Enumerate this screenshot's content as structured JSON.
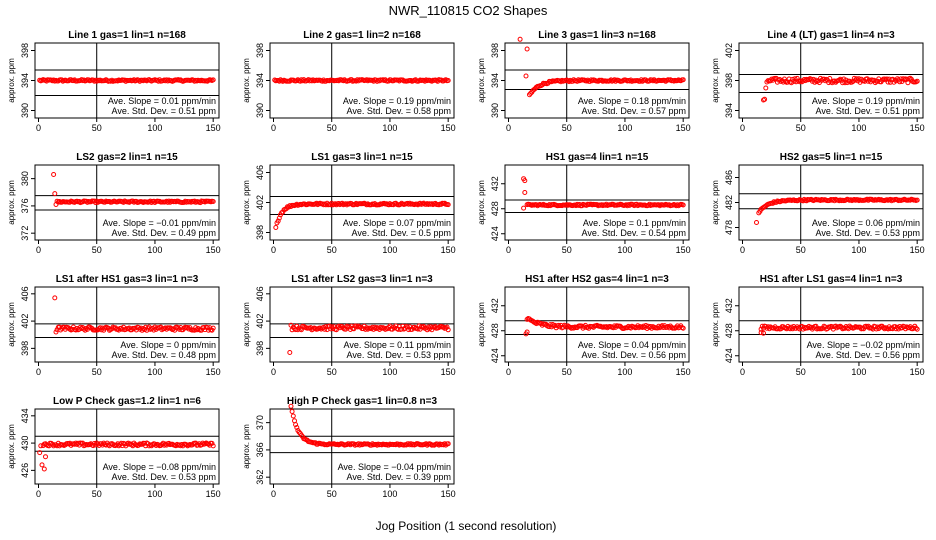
{
  "figure": {
    "title": "NWR_110815  CO2 Shapes",
    "xlabel": "Jog Position (1 second resolution)"
  },
  "colors": {
    "points": "#ff0000",
    "axes": "#000000"
  },
  "chart_data": [
    {
      "type": "scatter",
      "title": "Line 1 gas=1 lin=1 n=168",
      "ylabel": "approx. ppm",
      "xlim": [
        -3,
        155
      ],
      "ylim": [
        389,
        399
      ],
      "yticks": [
        390,
        394,
        398
      ],
      "xticks": [
        0,
        50,
        100,
        150
      ],
      "hlines": [
        395.4,
        392.0
      ],
      "vline": 50,
      "slope": "Ave. Slope = 0.01  ppm/min",
      "stddev": "Ave. Std. Dev. = 0.51  ppm",
      "series": {
        "kind": "flat",
        "x_start": 1,
        "x_end": 150,
        "y": 394.0,
        "noise": 0.12
      }
    },
    {
      "type": "scatter",
      "title": "Line 2 gas=1 lin=2 n=168",
      "ylabel": "approx. ppm",
      "xlim": [
        -3,
        155
      ],
      "ylim": [
        389,
        399
      ],
      "yticks": [
        390,
        394,
        398
      ],
      "xticks": [
        0,
        50,
        100,
        150
      ],
      "hlines": [],
      "vline": 50,
      "slope": "Ave. Slope = 0.19  ppm/min",
      "stddev": "Ave. Std. Dev. = 0.58  ppm",
      "series": {
        "kind": "flat",
        "x_start": 1,
        "x_end": 150,
        "y": 394.0,
        "noise": 0.12
      }
    },
    {
      "type": "scatter",
      "title": "Line 3 gas=1 lin=3 n=168",
      "ylabel": "approx. ppm",
      "xlim": [
        -3,
        155
      ],
      "ylim": [
        389,
        399
      ],
      "yticks": [
        390,
        394,
        398
      ],
      "xticks": [
        0,
        50,
        100,
        150
      ],
      "hlines": [
        395.4,
        392.8
      ],
      "vline": 50,
      "slope": "Ave. Slope = 0.18  ppm/min",
      "stddev": "Ave. Std. Dev. = 0.57  ppm",
      "series": {
        "kind": "rise",
        "x_start": 18,
        "x_end": 150,
        "y": 394.0,
        "y0": 392.0,
        "tau": 8,
        "noise": 0.12,
        "extras": [
          [
            10,
            399.5
          ],
          [
            16,
            398.2
          ],
          [
            15,
            394.6
          ]
        ]
      }
    },
    {
      "type": "scatter",
      "title": "Line 4 (LT) gas=1 lin=4 n=3",
      "ylabel": "approx. ppm",
      "xlim": [
        -3,
        155
      ],
      "ylim": [
        393,
        403
      ],
      "yticks": [
        394,
        398,
        402
      ],
      "xticks": [
        0,
        50,
        100,
        150
      ],
      "hlines": [
        398.8,
        396.4
      ],
      "vline": 50,
      "slope": "Ave. Slope = 0.19  ppm/min",
      "stddev": "Ave. Std. Dev. = 0.51  ppm",
      "series": {
        "kind": "flat",
        "x_start": 22,
        "x_end": 150,
        "y": 398.0,
        "noise": 0.3,
        "extras": [
          [
            18,
            395.4
          ],
          [
            19,
            395.5
          ],
          [
            20,
            397.0
          ],
          [
            21,
            397.8
          ]
        ]
      }
    },
    {
      "type": "scatter",
      "title": "LS2 gas=2 lin=1 n=15",
      "ylabel": "approx. ppm",
      "xlim": [
        -3,
        155
      ],
      "ylim": [
        371,
        382
      ],
      "yticks": [
        372,
        376,
        380
      ],
      "xticks": [
        0,
        50,
        100,
        150
      ],
      "hlines": [
        377.5,
        375.4
      ],
      "vline": 50,
      "slope": "Ave. Slope = −0.01  ppm/min",
      "stddev": "Ave. Std. Dev. = 0.49  ppm",
      "series": {
        "kind": "flat",
        "x_start": 16,
        "x_end": 150,
        "y": 376.6,
        "noise": 0.12,
        "extras": [
          [
            13,
            380.6
          ],
          [
            14,
            377.8
          ],
          [
            15,
            376.2
          ]
        ]
      }
    },
    {
      "type": "scatter",
      "title": "LS1 gas=3 lin=1 n=15",
      "ylabel": "approx. ppm",
      "xlim": [
        -3,
        155
      ],
      "ylim": [
        397,
        407
      ],
      "yticks": [
        398,
        402,
        406
      ],
      "xticks": [
        0,
        50,
        100,
        150
      ],
      "hlines": [
        402.8,
        400.4
      ],
      "vline": 50,
      "slope": "Ave. Slope = 0.07  ppm/min",
      "stddev": "Ave. Std. Dev. = 0.5  ppm",
      "series": {
        "kind": "rise",
        "x_start": 2,
        "x_end": 150,
        "y": 401.8,
        "y0": 398.6,
        "tau": 5,
        "noise": 0.12
      }
    },
    {
      "type": "scatter",
      "title": "HS1 gas=4 lin=1 n=15",
      "ylabel": "approx. ppm",
      "xlim": [
        -3,
        155
      ],
      "ylim": [
        423,
        435
      ],
      "yticks": [
        424,
        428,
        432
      ],
      "xticks": [
        0,
        50,
        100,
        150
      ],
      "hlines": [
        429.4,
        427.4
      ],
      "vline": 50,
      "slope": "Ave. Slope = 0.1  ppm/min",
      "stddev": "Ave. Std. Dev. = 0.54  ppm",
      "series": {
        "kind": "flat",
        "x_start": 16,
        "x_end": 150,
        "y": 428.6,
        "noise": 0.12,
        "extras": [
          [
            13,
            432.8
          ],
          [
            14,
            432.5
          ],
          [
            13,
            428.1
          ],
          [
            14,
            430.6
          ]
        ]
      }
    },
    {
      "type": "scatter",
      "title": "HS2 gas=5 lin=1 n=15",
      "ylabel": "approx. ppm",
      "xlim": [
        -3,
        155
      ],
      "ylim": [
        476,
        488
      ],
      "yticks": [
        478,
        482,
        486
      ],
      "xticks": [
        0,
        50,
        100,
        150
      ],
      "hlines": [
        483.4,
        481.0
      ],
      "vline": 50,
      "slope": "Ave. Slope = 0.06  ppm/min",
      "stddev": "Ave. Std. Dev. = 0.53  ppm",
      "series": {
        "kind": "rise",
        "x_start": 14,
        "x_end": 150,
        "y": 482.4,
        "y0": 480.4,
        "tau": 8,
        "noise": 0.12,
        "extras": [
          [
            12,
            478.8
          ]
        ]
      }
    },
    {
      "type": "scatter",
      "title": "LS1 after HS1 gas=3 lin=1 n=3",
      "ylabel": "approx. ppm",
      "xlim": [
        -3,
        155
      ],
      "ylim": [
        396,
        407
      ],
      "yticks": [
        398,
        402,
        406
      ],
      "xticks": [
        0,
        50,
        100,
        150
      ],
      "hlines": [
        401.6,
        399.6
      ],
      "vline": 50,
      "slope": "Ave. Slope = 0  ppm/min",
      "stddev": "Ave. Std. Dev. = 0.48  ppm",
      "series": {
        "kind": "flat",
        "x_start": 16,
        "x_end": 150,
        "y": 400.9,
        "noise": 0.25,
        "extras": [
          [
            14,
            405.4
          ],
          [
            15,
            400.4
          ]
        ]
      }
    },
    {
      "type": "scatter",
      "title": "LS1 after LS2 gas=3 lin=1 n=3",
      "ylabel": "approx. ppm",
      "xlim": [
        -3,
        155
      ],
      "ylim": [
        396,
        407
      ],
      "yticks": [
        398,
        402,
        406
      ],
      "xticks": [
        0,
        50,
        100,
        150
      ],
      "hlines": [
        401.6,
        399.6
      ],
      "vline": 50,
      "slope": "Ave. Slope = 0.11  ppm/min",
      "stddev": "Ave. Std. Dev. = 0.53  ppm",
      "series": {
        "kind": "flat",
        "x_start": 16,
        "x_end": 150,
        "y": 401.0,
        "noise": 0.28,
        "extras": [
          [
            14,
            397.4
          ],
          [
            15,
            401.4
          ]
        ]
      }
    },
    {
      "type": "scatter",
      "title": "HS1 after HS2 gas=4 lin=1 n=3",
      "ylabel": "approx. ppm",
      "xlim": [
        -3,
        155
      ],
      "ylim": [
        423,
        435
      ],
      "yticks": [
        424,
        428,
        432
      ],
      "xticks": [
        0,
        50,
        100,
        150
      ],
      "hlines": [
        429.6,
        427.4
      ],
      "vline": 50,
      "slope": "Ave. Slope = 0.04  ppm/min",
      "stddev": "Ave. Std. Dev. = 0.56  ppm",
      "series": {
        "kind": "decay",
        "x_start": 16,
        "x_end": 150,
        "y": 428.6,
        "y0": 430.0,
        "tau": 10,
        "noise": 0.25,
        "extras": [
          [
            15,
            427.5
          ],
          [
            16,
            427.8
          ]
        ]
      }
    },
    {
      "type": "scatter",
      "title": "HS1 after LS1 gas=4 lin=1 n=3",
      "ylabel": "approx. ppm",
      "xlim": [
        -3,
        155
      ],
      "ylim": [
        423,
        435
      ],
      "yticks": [
        424,
        428,
        432
      ],
      "xticks": [
        0,
        50,
        100,
        150
      ],
      "hlines": [
        429.6,
        427.4
      ],
      "vline": 50,
      "slope": "Ave. Slope = −0.02  ppm/min",
      "stddev": "Ave. Std. Dev. = 0.56  ppm",
      "series": {
        "kind": "flat",
        "x_start": 16,
        "x_end": 150,
        "y": 428.5,
        "noise": 0.25,
        "extras": [
          [
            16,
            427.7
          ],
          [
            18,
            427.6
          ]
        ]
      }
    },
    {
      "type": "scatter",
      "title": "Low P Check gas=1.2 lin=1 n=6",
      "ylabel": "approx. ppm",
      "xlim": [
        -3,
        155
      ],
      "ylim": [
        424,
        435
      ],
      "yticks": [
        426,
        430,
        434
      ],
      "xticks": [
        0,
        50,
        100,
        150
      ],
      "hlines": [
        431.0,
        428.8
      ],
      "vline": 50,
      "slope": "Ave. Slope = −0.08  ppm/min",
      "stddev": "Ave. Std. Dev. = 0.53  ppm",
      "series": {
        "kind": "flat",
        "x_start": 4,
        "x_end": 150,
        "y": 429.8,
        "noise": 0.22,
        "extras": [
          [
            1,
            428.6
          ],
          [
            2,
            429.6
          ],
          [
            3,
            426.8
          ],
          [
            5,
            426.2
          ],
          [
            6,
            428.0
          ]
        ]
      }
    },
    {
      "type": "scatter",
      "title": "High P Check gas=1 lin=0.8 n=3",
      "ylabel": "approx. ppm",
      "xlim": [
        -3,
        155
      ],
      "ylim": [
        361,
        372
      ],
      "yticks": [
        362,
        366,
        370
      ],
      "xticks": [
        0,
        50,
        100,
        150
      ],
      "hlines": [
        368.0,
        365.6
      ],
      "vline": 50,
      "slope": "Ave. Slope = −0.04  ppm/min",
      "stddev": "Ave. Std. Dev. = 0.39  ppm",
      "series": {
        "kind": "decay",
        "x_start": 15,
        "x_end": 150,
        "y": 366.8,
        "y0": 372.5,
        "tau": 6,
        "noise": 0.12
      }
    }
  ]
}
